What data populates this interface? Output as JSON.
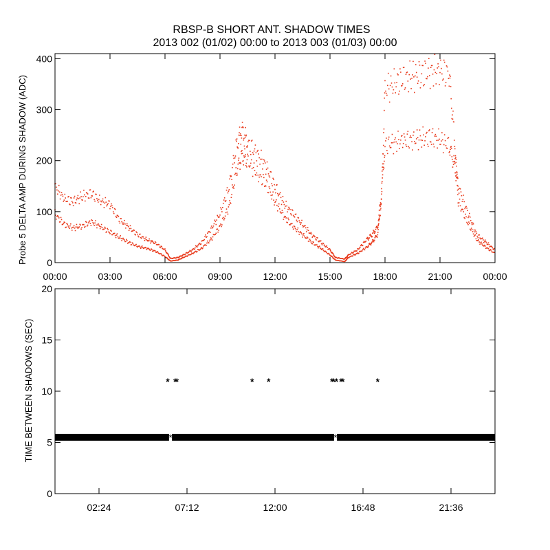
{
  "title_line1": "RBSP-B SHORT ANT. SHADOW TIMES",
  "title_line2": "2013 002 (01/02) 00:00 to 2013 003 (01/03) 00:00",
  "colors": {
    "amp_series": "#e8381a",
    "interval_series": "#000000",
    "background": "#ffffff"
  },
  "chart_data": [
    {
      "type": "scatter",
      "ylabel": "Probe 5 DELTA AMP DURING SHADOW (ADC)",
      "xlabel": "",
      "xlim": [
        0,
        24
      ],
      "ylim": [
        0,
        410
      ],
      "xticks": [
        0,
        3,
        6,
        9,
        12,
        15,
        18,
        21,
        24
      ],
      "xtick_labels": [
        "00:00",
        "03:00",
        "06:00",
        "09:00",
        "12:00",
        "15:00",
        "18:00",
        "21:00",
        "00:00"
      ],
      "yticks": [
        0,
        100,
        200,
        300,
        400
      ],
      "ytick_labels": [
        "0",
        "100",
        "200",
        "300",
        "400"
      ],
      "grid": false,
      "series": [
        {
          "x": [
            0.0,
            0.5,
            1.0,
            1.5,
            2.0,
            2.5,
            3.0,
            3.5,
            4.0,
            4.5,
            5.0,
            5.5,
            6.0,
            6.3,
            6.7,
            7.0,
            7.5,
            8.0,
            8.5,
            9.0,
            9.5,
            9.9,
            10.2,
            10.5,
            11.0,
            11.5,
            12.0,
            12.5,
            13.0,
            13.5,
            14.0,
            14.5,
            15.0,
            15.3,
            15.8,
            16.0,
            16.5,
            17.0,
            17.3,
            17.6,
            17.8,
            18.0,
            18.5,
            19.0,
            19.5,
            20.0,
            20.5,
            21.0,
            21.5,
            21.8,
            22.0,
            22.5,
            23.0,
            23.5,
            24.0
          ],
          "y": [
            150,
            125,
            120,
            130,
            135,
            120,
            115,
            85,
            70,
            55,
            45,
            38,
            25,
            8,
            10,
            15,
            25,
            40,
            65,
            95,
            150,
            230,
            260,
            235,
            215,
            190,
            150,
            115,
            95,
            75,
            55,
            40,
            25,
            10,
            7,
            15,
            25,
            45,
            55,
            70,
            130,
            230,
            235,
            240,
            240,
            245,
            245,
            240,
            230,
            190,
            150,
            100,
            55,
            40,
            25
          ]
        },
        {
          "x": [
            0.0,
            0.5,
            1.0,
            1.5,
            2.0,
            2.5,
            3.0,
            3.5,
            4.0,
            4.5,
            5.0,
            5.5,
            6.0,
            6.3,
            6.7,
            7.0,
            7.5,
            8.0,
            8.5,
            9.0,
            9.5,
            9.9,
            10.2,
            10.5,
            11.0,
            11.5,
            12.0,
            12.5,
            13.0,
            13.5,
            14.0,
            14.5,
            15.0,
            15.3,
            15.8,
            16.0,
            16.5,
            17.0,
            17.3,
            17.6,
            17.8,
            18.0,
            18.5,
            19.0,
            19.5,
            20.0,
            20.5,
            21.0,
            21.5,
            21.8,
            22.0,
            22.5,
            23.0,
            23.5,
            24.0
          ],
          "y": [
            95,
            75,
            68,
            72,
            80,
            70,
            60,
            50,
            40,
            32,
            28,
            22,
            12,
            3,
            5,
            10,
            18,
            28,
            45,
            70,
            110,
            180,
            210,
            200,
            175,
            155,
            120,
            90,
            70,
            55,
            40,
            28,
            15,
            5,
            2,
            10,
            18,
            30,
            40,
            55,
            120,
            340,
            350,
            360,
            365,
            370,
            375,
            375,
            370,
            240,
            120,
            80,
            45,
            30,
            18
          ]
        }
      ]
    },
    {
      "type": "scatter",
      "ylabel": "TIME BETWEEN SHADOWS (SEC)",
      "xlabel": "",
      "xlim": [
        0,
        24
      ],
      "ylim": [
        0,
        20
      ],
      "xticks": [
        2.4,
        7.2,
        12.0,
        16.8,
        21.6
      ],
      "xtick_labels": [
        "02:24",
        "07:12",
        "12:00",
        "16:48",
        "21:36"
      ],
      "yticks": [
        0,
        5,
        10,
        15,
        20
      ],
      "ytick_labels": [
        "0",
        "5",
        "10",
        "15",
        "20"
      ],
      "grid": false,
      "baseline": {
        "y": 5.5,
        "x_start": 0.0,
        "x_end": 24.0,
        "gaps": [
          6.3,
          15.3
        ]
      },
      "outliers": {
        "x": [
          6.15,
          6.55,
          6.65,
          10.75,
          11.65,
          15.1,
          15.2,
          15.35,
          15.6,
          15.7,
          17.6
        ],
        "y": [
          11,
          11,
          11,
          11,
          11,
          11,
          11,
          11,
          11,
          11,
          11
        ]
      }
    }
  ]
}
